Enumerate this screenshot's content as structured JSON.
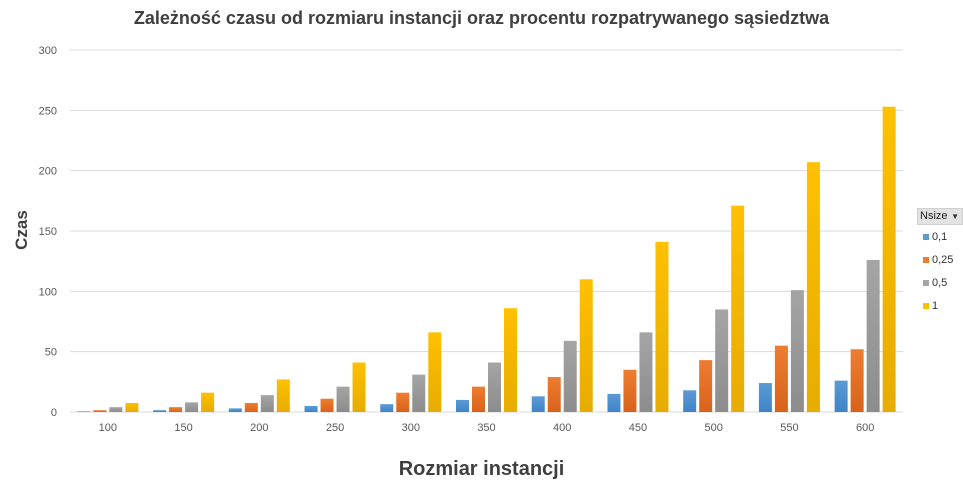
{
  "colors": {
    "series": [
      "#5b9bd5",
      "#ed7d31",
      "#a5a5a5",
      "#ffc000"
    ],
    "series_dark": [
      "#3f84c7",
      "#d9621a",
      "#8c8c8c",
      "#e6ac00"
    ],
    "grid": "#d9d9d9",
    "axis": "#d9d9d9"
  },
  "legend": {
    "header": "Nsize",
    "dropdown_icon": "triangle-down-icon"
  },
  "chart_data": {
    "type": "bar",
    "title": "Zależność czasu od rozmiaru instancji oraz procentu rozpatrywanego sąsiedztwa",
    "xlabel": "Rozmiar instancji",
    "ylabel": "Czas",
    "categories": [
      "100",
      "150",
      "200",
      "250",
      "300",
      "350",
      "400",
      "450",
      "500",
      "550",
      "600"
    ],
    "ylim": [
      0,
      300
    ],
    "yticks": [
      "0",
      "50",
      "100",
      "150",
      "200",
      "250",
      "300"
    ],
    "grid": true,
    "legend_position": "right",
    "series": [
      {
        "name": "0,1",
        "values": [
          0.5,
          1.5,
          3,
          5,
          6.5,
          10,
          13,
          15,
          18,
          24,
          26
        ]
      },
      {
        "name": "0,25",
        "values": [
          1.5,
          4,
          7.5,
          11,
          16,
          21,
          29,
          35,
          43,
          55,
          52
        ]
      },
      {
        "name": "0,5",
        "values": [
          4,
          8,
          14,
          21,
          31,
          41,
          59,
          66,
          85,
          101,
          126
        ]
      },
      {
        "name": "1",
        "values": [
          7.5,
          16,
          27,
          41,
          66,
          86,
          110,
          141,
          171,
          207,
          253
        ]
      }
    ]
  }
}
